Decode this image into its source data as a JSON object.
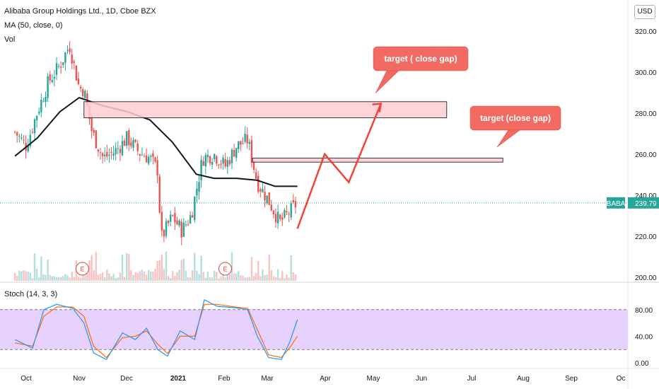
{
  "legend": {
    "title": "Alibaba Group Holdings Ltd., 1D, Cboe BZX",
    "ma": "MA (50, close, 0)",
    "vol": "Vol",
    "stoch": "Stoch (14, 3, 3)"
  },
  "currency": "USD",
  "colors": {
    "up": "#26a69a",
    "down": "#ef5350",
    "ma": "#131722",
    "zone_fill": "#ffcdd2",
    "zone_border": "#131722",
    "projection": "#f0443a",
    "callout_bg": "#f26b63",
    "stoch_band": "#e1c6ff",
    "stoch_k": "#2196f3",
    "stoch_d": "#ff6d00",
    "price_line": "#26a69a"
  },
  "chart_data": {
    "type": "candlestick",
    "symbol": "BABA",
    "last_price": "239.79",
    "price_axis": {
      "ticks": [
        200,
        220,
        240,
        260,
        280,
        300,
        320
      ],
      "labels": [
        "200.00",
        "220.00",
        "240.00",
        "260.00",
        "280.00",
        "300.00",
        "320.00"
      ],
      "range": [
        197,
        335
      ]
    },
    "stoch_axis": {
      "ticks": [
        0,
        40,
        80
      ],
      "labels": [
        "0.00",
        "40.00",
        "80.00"
      ],
      "levels": [
        20,
        80
      ]
    },
    "time_axis": {
      "labels": [
        "Oct",
        "Nov",
        "Dec",
        "2021",
        "Feb",
        "Mar",
        "Apr",
        "May",
        "Jun",
        "Jul",
        "Aug",
        "Sep",
        "Oc"
      ]
    },
    "close_points": [
      {
        "date": "2020-09-24",
        "close": 275
      },
      {
        "date": "2020-10-01",
        "close": 268
      },
      {
        "date": "2020-10-08",
        "close": 285
      },
      {
        "date": "2020-10-15",
        "close": 300
      },
      {
        "date": "2020-10-22",
        "close": 308
      },
      {
        "date": "2020-10-28",
        "close": 318
      },
      {
        "date": "2020-11-03",
        "close": 297
      },
      {
        "date": "2020-11-06",
        "close": 296
      },
      {
        "date": "2020-11-11",
        "close": 275
      },
      {
        "date": "2020-11-18",
        "close": 262
      },
      {
        "date": "2020-11-25",
        "close": 265
      },
      {
        "date": "2020-12-03",
        "close": 272
      },
      {
        "date": "2020-12-10",
        "close": 265
      },
      {
        "date": "2020-12-17",
        "close": 262
      },
      {
        "date": "2020-12-22",
        "close": 256
      },
      {
        "date": "2020-12-24",
        "close": 222
      },
      {
        "date": "2020-12-31",
        "close": 233
      },
      {
        "date": "2021-01-06",
        "close": 226
      },
      {
        "date": "2021-01-12",
        "close": 234
      },
      {
        "date": "2021-01-19",
        "close": 262
      },
      {
        "date": "2021-01-26",
        "close": 264
      },
      {
        "date": "2021-02-02",
        "close": 258
      },
      {
        "date": "2021-02-09",
        "close": 268
      },
      {
        "date": "2021-02-16",
        "close": 271
      },
      {
        "date": "2021-02-22",
        "close": 250
      },
      {
        "date": "2021-03-01",
        "close": 241
      },
      {
        "date": "2021-03-08",
        "close": 230
      },
      {
        "date": "2021-03-15",
        "close": 236
      },
      {
        "date": "2021-03-19",
        "close": 240
      }
    ],
    "ma50": [
      {
        "date": "2020-09-24",
        "value": 263
      },
      {
        "date": "2020-10-08",
        "value": 272
      },
      {
        "date": "2020-10-22",
        "value": 285
      },
      {
        "date": "2020-11-03",
        "value": 292
      },
      {
        "date": "2020-11-18",
        "value": 288
      },
      {
        "date": "2020-12-03",
        "value": 285
      },
      {
        "date": "2020-12-17",
        "value": 281
      },
      {
        "date": "2020-12-31",
        "value": 270
      },
      {
        "date": "2021-01-15",
        "value": 254
      },
      {
        "date": "2021-01-26",
        "value": 252
      },
      {
        "date": "2021-02-09",
        "value": 252
      },
      {
        "date": "2021-02-22",
        "value": 251
      },
      {
        "date": "2021-03-05",
        "value": 248
      },
      {
        "date": "2021-03-19",
        "value": 248
      }
    ],
    "zones": [
      {
        "from": "2020-11-06",
        "to": "2021-06-20",
        "low": 282,
        "high": 290,
        "note": "target ( close gap)"
      },
      {
        "from": "2021-02-19",
        "to": "2021-07-25",
        "low": 260,
        "high": 262,
        "note": "target (close gap)"
      }
    ],
    "projection": [
      {
        "date": "2021-03-19",
        "value": 227
      },
      {
        "date": "2021-04-05",
        "value": 264
      },
      {
        "date": "2021-04-20",
        "value": 250
      },
      {
        "date": "2021-05-10",
        "value": 289
      }
    ],
    "earnings_markers": [
      {
        "date": "2020-11-05",
        "label": "E"
      },
      {
        "date": "2021-02-02",
        "label": "E"
      }
    ],
    "stoch_k": [
      {
        "date": "2020-09-24",
        "value": 35
      },
      {
        "date": "2020-10-05",
        "value": 22
      },
      {
        "date": "2020-10-12",
        "value": 80
      },
      {
        "date": "2020-10-20",
        "value": 88
      },
      {
        "date": "2020-10-30",
        "value": 82
      },
      {
        "date": "2020-11-06",
        "value": 60
      },
      {
        "date": "2020-11-12",
        "value": 15
      },
      {
        "date": "2020-11-20",
        "value": 5
      },
      {
        "date": "2020-11-30",
        "value": 45
      },
      {
        "date": "2020-12-08",
        "value": 35
      },
      {
        "date": "2020-12-15",
        "value": 52
      },
      {
        "date": "2020-12-22",
        "value": 20
      },
      {
        "date": "2020-12-28",
        "value": 10
      },
      {
        "date": "2021-01-05",
        "value": 48
      },
      {
        "date": "2021-01-14",
        "value": 35
      },
      {
        "date": "2021-01-20",
        "value": 95
      },
      {
        "date": "2021-01-28",
        "value": 85
      },
      {
        "date": "2021-02-08",
        "value": 83
      },
      {
        "date": "2021-02-16",
        "value": 80
      },
      {
        "date": "2021-02-22",
        "value": 40
      },
      {
        "date": "2021-03-01",
        "value": 8
      },
      {
        "date": "2021-03-09",
        "value": 5
      },
      {
        "date": "2021-03-14",
        "value": 30
      },
      {
        "date": "2021-03-19",
        "value": 65
      }
    ],
    "stoch_d": [
      {
        "date": "2020-09-24",
        "value": 30
      },
      {
        "date": "2020-10-05",
        "value": 25
      },
      {
        "date": "2020-10-12",
        "value": 70
      },
      {
        "date": "2020-10-20",
        "value": 84
      },
      {
        "date": "2020-10-30",
        "value": 84
      },
      {
        "date": "2020-11-06",
        "value": 70
      },
      {
        "date": "2020-11-12",
        "value": 25
      },
      {
        "date": "2020-11-20",
        "value": 8
      },
      {
        "date": "2020-11-30",
        "value": 38
      },
      {
        "date": "2020-12-08",
        "value": 40
      },
      {
        "date": "2020-12-15",
        "value": 48
      },
      {
        "date": "2020-12-22",
        "value": 28
      },
      {
        "date": "2020-12-28",
        "value": 14
      },
      {
        "date": "2021-01-05",
        "value": 40
      },
      {
        "date": "2021-01-14",
        "value": 40
      },
      {
        "date": "2021-01-20",
        "value": 88
      },
      {
        "date": "2021-01-28",
        "value": 88
      },
      {
        "date": "2021-02-08",
        "value": 84
      },
      {
        "date": "2021-02-16",
        "value": 82
      },
      {
        "date": "2021-02-22",
        "value": 50
      },
      {
        "date": "2021-03-01",
        "value": 12
      },
      {
        "date": "2021-03-09",
        "value": 8
      },
      {
        "date": "2021-03-14",
        "value": 22
      },
      {
        "date": "2021-03-19",
        "value": 40
      }
    ]
  }
}
